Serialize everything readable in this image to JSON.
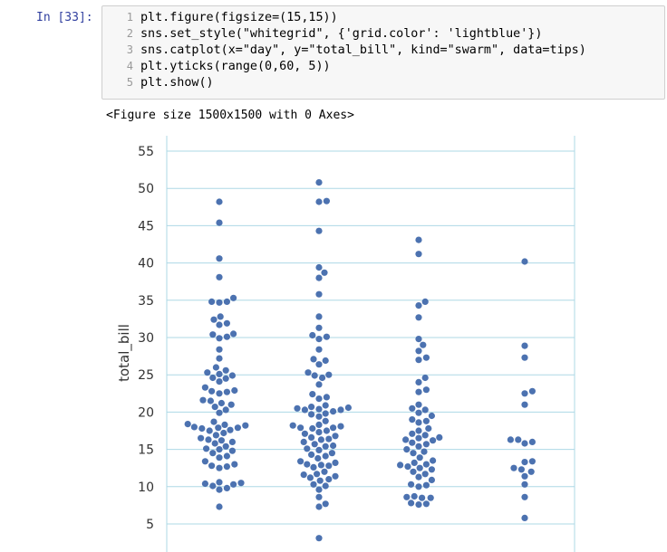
{
  "cell": {
    "prompt": "In [33]:",
    "lines": [
      {
        "num": "1",
        "text": "plt.figure(figsize=(15,15))"
      },
      {
        "num": "2",
        "text": "sns.set_style(\"whitegrid\", {'grid.color': 'lightblue'})"
      },
      {
        "num": "3",
        "text": "sns.catplot(x=\"day\", y=\"total_bill\", kind=\"swarm\", data=tips)"
      },
      {
        "num": "4",
        "text": "plt.yticks(range(0,60, 5))"
      },
      {
        "num": "5",
        "text": "plt.show()"
      }
    ],
    "output_text": "<Figure size 1500x1500 with 0 Axes>"
  },
  "colors": {
    "prompt": "#303f9f",
    "point": "#4c72b0",
    "grid": "#add8e6"
  },
  "chart_data": {
    "type": "scatter",
    "kind": "swarm",
    "ylabel": "total_bill",
    "yticks": [
      5,
      10,
      15,
      20,
      25,
      30,
      35,
      40,
      45,
      50,
      55
    ],
    "ylim": [
      3,
      56.5
    ],
    "grid": true,
    "series": [
      {
        "values": [
          48.2,
          45.4,
          40.6,
          38.1,
          35.3,
          34.8,
          34.8,
          34.7,
          32.8,
          32.4,
          31.9,
          31.7,
          30.5,
          30.4,
          30.1,
          29.9,
          28.4,
          27.2,
          26.0,
          25.6,
          25.3,
          25.1,
          24.9,
          24.6,
          24.5,
          24.1,
          23.3,
          22.9,
          22.8,
          22.7,
          22.5,
          21.6,
          21.5,
          21.2,
          21.0,
          20.7,
          20.3,
          19.9,
          18.7,
          18.4,
          18.3,
          18.2,
          18.0,
          17.9,
          17.9,
          17.8,
          17.6,
          17.5,
          17.2,
          16.9,
          16.5,
          16.3,
          16.2,
          16.0,
          15.8,
          15.4,
          15.1,
          15.0,
          14.8,
          14.5,
          14.1,
          13.9,
          13.4,
          13.0,
          12.8,
          12.7,
          12.5,
          10.6,
          10.5,
          10.4,
          10.3,
          10.1,
          9.8,
          9.6,
          7.3
        ]
      },
      {
        "values": [
          50.8,
          48.3,
          48.2,
          44.3,
          39.4,
          38.7,
          38.0,
          35.8,
          32.8,
          31.3,
          30.3,
          30.1,
          29.8,
          28.4,
          27.1,
          26.9,
          26.4,
          25.3,
          25.0,
          24.9,
          24.6,
          23.7,
          22.4,
          22.0,
          21.8,
          20.9,
          20.7,
          20.6,
          20.5,
          20.4,
          20.3,
          20.3,
          20.1,
          19.8,
          19.7,
          19.4,
          18.8,
          18.3,
          18.2,
          18.1,
          17.9,
          17.9,
          17.8,
          17.5,
          17.3,
          17.1,
          16.8,
          16.6,
          16.4,
          16.3,
          16.0,
          15.7,
          15.5,
          15.4,
          15.1,
          14.9,
          14.5,
          14.3,
          14.1,
          13.8,
          13.4,
          13.2,
          13.0,
          12.9,
          12.8,
          12.6,
          12.0,
          11.7,
          11.6,
          11.4,
          11.2,
          11.0,
          10.8,
          10.3,
          10.1,
          9.6,
          8.6,
          7.7,
          7.3,
          3.1
        ]
      },
      {
        "values": [
          43.1,
          41.2,
          34.8,
          34.3,
          32.7,
          29.8,
          29.0,
          28.2,
          27.3,
          27.0,
          24.6,
          24.0,
          23.0,
          22.7,
          21.0,
          20.5,
          20.3,
          19.9,
          19.5,
          19.0,
          18.8,
          18.6,
          17.8,
          17.5,
          17.1,
          16.9,
          16.6,
          16.5,
          16.3,
          16.2,
          15.9,
          15.7,
          15.4,
          15.0,
          14.7,
          14.5,
          13.9,
          13.5,
          13.2,
          13.0,
          12.9,
          12.7,
          12.5,
          12.3,
          12.0,
          11.7,
          11.3,
          10.9,
          10.3,
          10.2,
          10.0,
          8.7,
          8.6,
          8.5,
          8.5,
          7.8,
          7.7,
          7.6
        ]
      },
      {
        "values": [
          40.2,
          28.9,
          27.3,
          22.8,
          22.5,
          21.0,
          16.3,
          16.3,
          16.0,
          15.8,
          13.4,
          13.3,
          12.5,
          12.3,
          12.0,
          11.4,
          10.3,
          8.6,
          5.8
        ]
      }
    ]
  }
}
